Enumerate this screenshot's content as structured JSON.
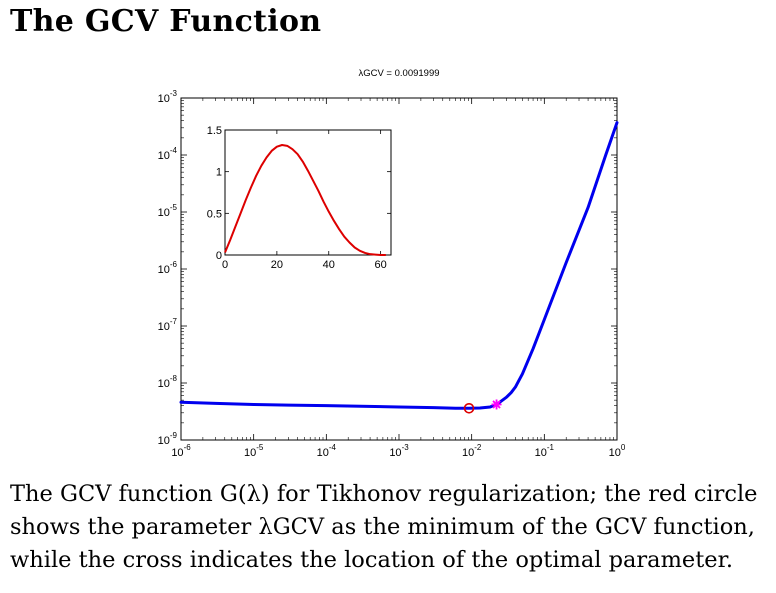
{
  "page": {
    "title": "The GCV Function",
    "caption": "The GCV function G(λ) for Tikhonov regularization; the red circle shows the parameter λGCV as the minimum of the GCV function, while the cross indicates the location of the optimal parameter."
  },
  "chart_data": [
    {
      "type": "line",
      "title": "λGCV = 0.0091999",
      "xlabel": "",
      "ylabel": "",
      "xscale": "log",
      "yscale": "log",
      "xlim": [
        1e-06,
        1
      ],
      "ylim": [
        1e-09,
        0.001
      ],
      "x_ticks": [
        "10^-6",
        "10^-5",
        "10^-4",
        "10^-3",
        "10^-2",
        "10^-1",
        "10^0"
      ],
      "y_ticks": [
        "10^-9",
        "10^-8",
        "10^-7",
        "10^-6",
        "10^-5",
        "10^-4",
        "10^-3"
      ],
      "series": [
        {
          "color": "#0000ee",
          "x": [
            1e-06,
            3e-06,
            1e-05,
            3e-05,
            0.0001,
            0.0003,
            0.001,
            0.003,
            0.006,
            0.0091999,
            0.013,
            0.018,
            0.022,
            0.026,
            0.03,
            0.035,
            0.04,
            0.05,
            0.07,
            0.1,
            0.2,
            0.4,
            0.7,
            1.0
          ],
          "y": [
            4.6e-09,
            4.4e-09,
            4.2e-09,
            4.1e-09,
            4e-09,
            3.9e-09,
            3.8e-09,
            3.7e-09,
            3.6e-09,
            3.6e-09,
            3.65e-09,
            3.8e-09,
            4.2e-09,
            4.9e-09,
            5.6e-09,
            6.8e-09,
            8.5e-09,
            1.45e-08,
            4e-08,
            1.3e-07,
            1.3e-06,
            1.2e-05,
            0.0001,
            0.00037
          ]
        }
      ],
      "markers": [
        {
          "kind": "circle",
          "color": "#dd0000",
          "x": 0.0091999,
          "y": 3.6e-09
        },
        {
          "kind": "star",
          "color": "#ff00ff",
          "x": 0.022,
          "y": 4.2e-09
        }
      ]
    },
    {
      "type": "line",
      "xlim": [
        0,
        64
      ],
      "ylim": [
        0,
        1.5
      ],
      "x_ticks": [
        "0",
        "20",
        "40",
        "60"
      ],
      "y_ticks": [
        "0",
        "0.5",
        "1",
        "1.5"
      ],
      "series": [
        {
          "color": "#dd0000",
          "x": [
            0,
            2,
            4,
            6,
            8,
            10,
            12,
            14,
            16,
            18,
            20,
            22,
            24,
            26,
            28,
            30,
            32,
            34,
            36,
            38,
            40,
            42,
            44,
            46,
            48,
            50,
            52,
            54,
            56,
            58,
            60,
            62
          ],
          "y": [
            0.03,
            0.18,
            0.34,
            0.5,
            0.66,
            0.81,
            0.95,
            1.07,
            1.17,
            1.25,
            1.3,
            1.32,
            1.31,
            1.27,
            1.21,
            1.12,
            1.01,
            0.89,
            0.77,
            0.64,
            0.52,
            0.41,
            0.31,
            0.22,
            0.15,
            0.09,
            0.05,
            0.025,
            0.01,
            0.005,
            0.0,
            0.0
          ]
        }
      ]
    }
  ]
}
